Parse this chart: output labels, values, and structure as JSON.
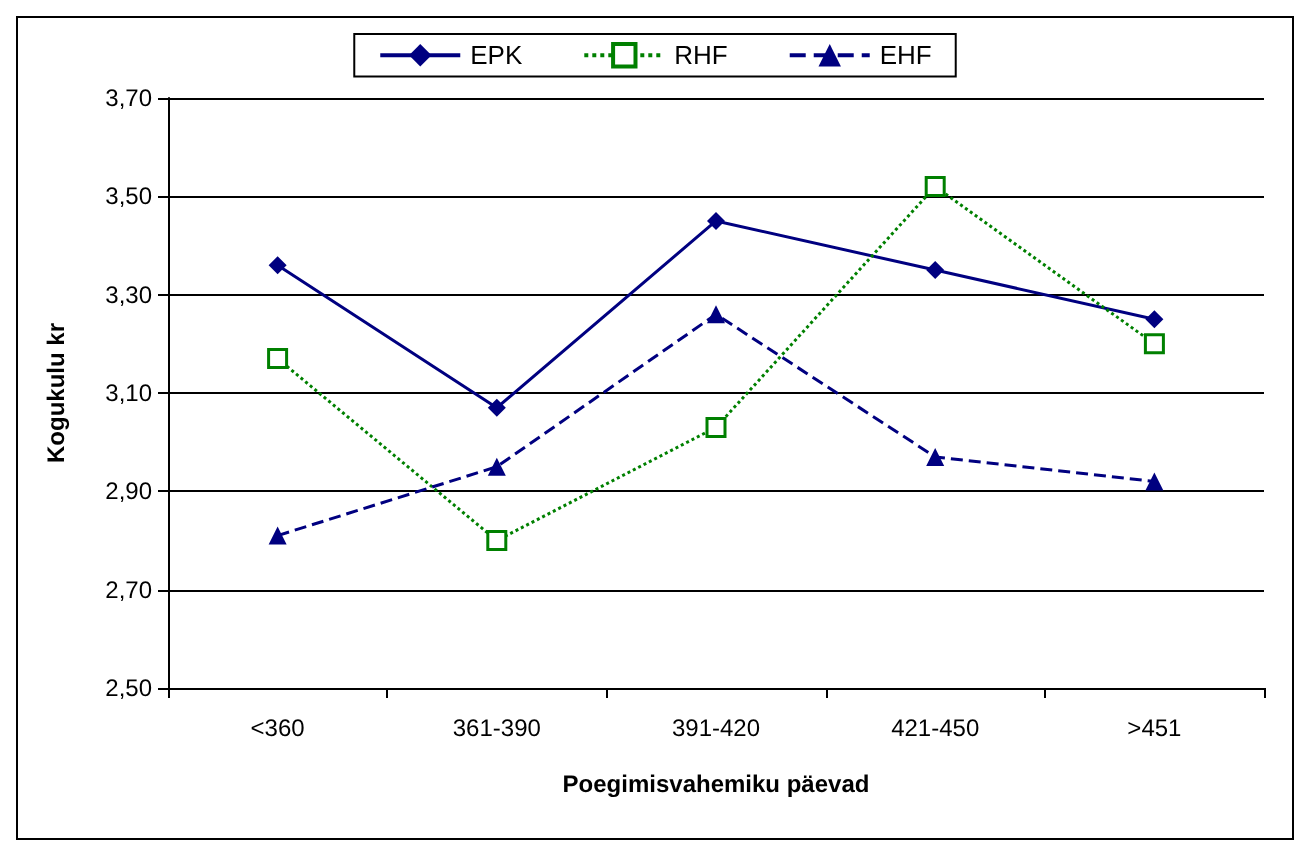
{
  "chart_data": {
    "type": "line",
    "xlabel": "Poegimisvahemiku päevad",
    "ylabel": "Kogukulu kr",
    "categories": [
      "<360",
      "361-390",
      "391-420",
      "421-450",
      ">451"
    ],
    "series": [
      {
        "name": "EPK",
        "color": "#000080",
        "marker": "diamond",
        "line_style": "solid",
        "values": [
          3.36,
          3.07,
          3.45,
          3.35,
          3.25
        ]
      },
      {
        "name": "RHF",
        "color": "#008000",
        "marker": "square",
        "line_style": "dotted",
        "values": [
          3.17,
          2.8,
          3.03,
          3.52,
          3.2
        ]
      },
      {
        "name": "EHF",
        "color": "#000080",
        "marker": "triangle",
        "line_style": "dashed",
        "values": [
          2.81,
          2.95,
          3.26,
          2.97,
          2.92
        ]
      }
    ],
    "ylim": [
      2.5,
      3.7
    ],
    "yticks": [
      {
        "value": 2.5,
        "label": "2,50"
      },
      {
        "value": 2.7,
        "label": "2,70"
      },
      {
        "value": 2.9,
        "label": "2,90"
      },
      {
        "value": 3.1,
        "label": "3,10"
      },
      {
        "value": 3.3,
        "label": "3,30"
      },
      {
        "value": 3.5,
        "label": "3,50"
      },
      {
        "value": 3.7,
        "label": "3,70"
      }
    ],
    "grid": "y",
    "legend": "top"
  }
}
